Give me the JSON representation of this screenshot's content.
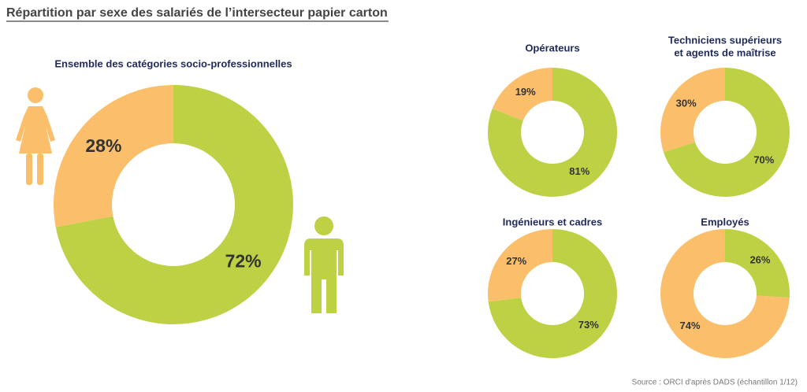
{
  "title": "Répartition par sexe des salariés de l’intersecteur papier carton",
  "source": "Source : ORCI d'après DADS (échantillon 1/12)",
  "chart_data": [
    {
      "type": "donut",
      "title": "Ensemble des catégories socio-professionnelles",
      "values": [
        72,
        28
      ],
      "value_labels": [
        "72%",
        "28%"
      ],
      "colors": [
        "#bed144",
        "#fbbf6b"
      ]
    },
    {
      "type": "donut",
      "title": "Opérateurs",
      "values": [
        81,
        19
      ],
      "value_labels": [
        "81%",
        "19%"
      ],
      "colors": [
        "#bed144",
        "#fbbf6b"
      ]
    },
    {
      "type": "donut",
      "title": [
        "Techniciens supérieurs",
        "et agents de maîtrise"
      ],
      "values": [
        70,
        30
      ],
      "value_labels": [
        "70%",
        "30%"
      ],
      "colors": [
        "#bed144",
        "#fbbf6b"
      ]
    },
    {
      "type": "donut",
      "title": "Ingénieurs et cadres",
      "values": [
        73,
        27
      ],
      "value_labels": [
        "73%",
        "27%"
      ],
      "colors": [
        "#bed144",
        "#fbbf6b"
      ]
    },
    {
      "type": "donut",
      "title": "Employés",
      "values": [
        26,
        74
      ],
      "value_labels": [
        "26%",
        "74%"
      ],
      "colors": [
        "#bed144",
        "#fbbf6b"
      ]
    }
  ]
}
